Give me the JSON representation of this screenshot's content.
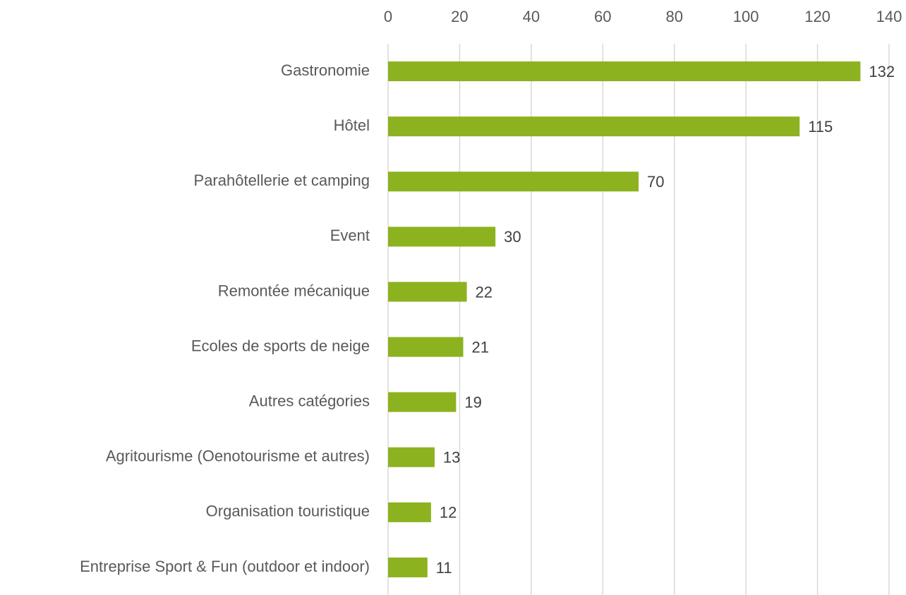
{
  "chart_data": {
    "type": "bar",
    "orientation": "horizontal",
    "categories": [
      "Gastronomie",
      "Hôtel",
      "Parahôtellerie et camping",
      "Event",
      "Remontée mécanique",
      "Ecoles de sports de neige",
      "Autres catégories",
      "Agritourisme (Oenotourisme et autres)",
      "Organisation touristique",
      "Entreprise Sport & Fun (outdoor et indoor)"
    ],
    "values": [
      132,
      115,
      70,
      30,
      22,
      21,
      19,
      13,
      12,
      11
    ],
    "color": "#8cb21f",
    "xlim": [
      0,
      140
    ],
    "xticks": [
      0,
      20,
      40,
      60,
      80,
      100,
      120,
      140
    ],
    "grid": true
  }
}
